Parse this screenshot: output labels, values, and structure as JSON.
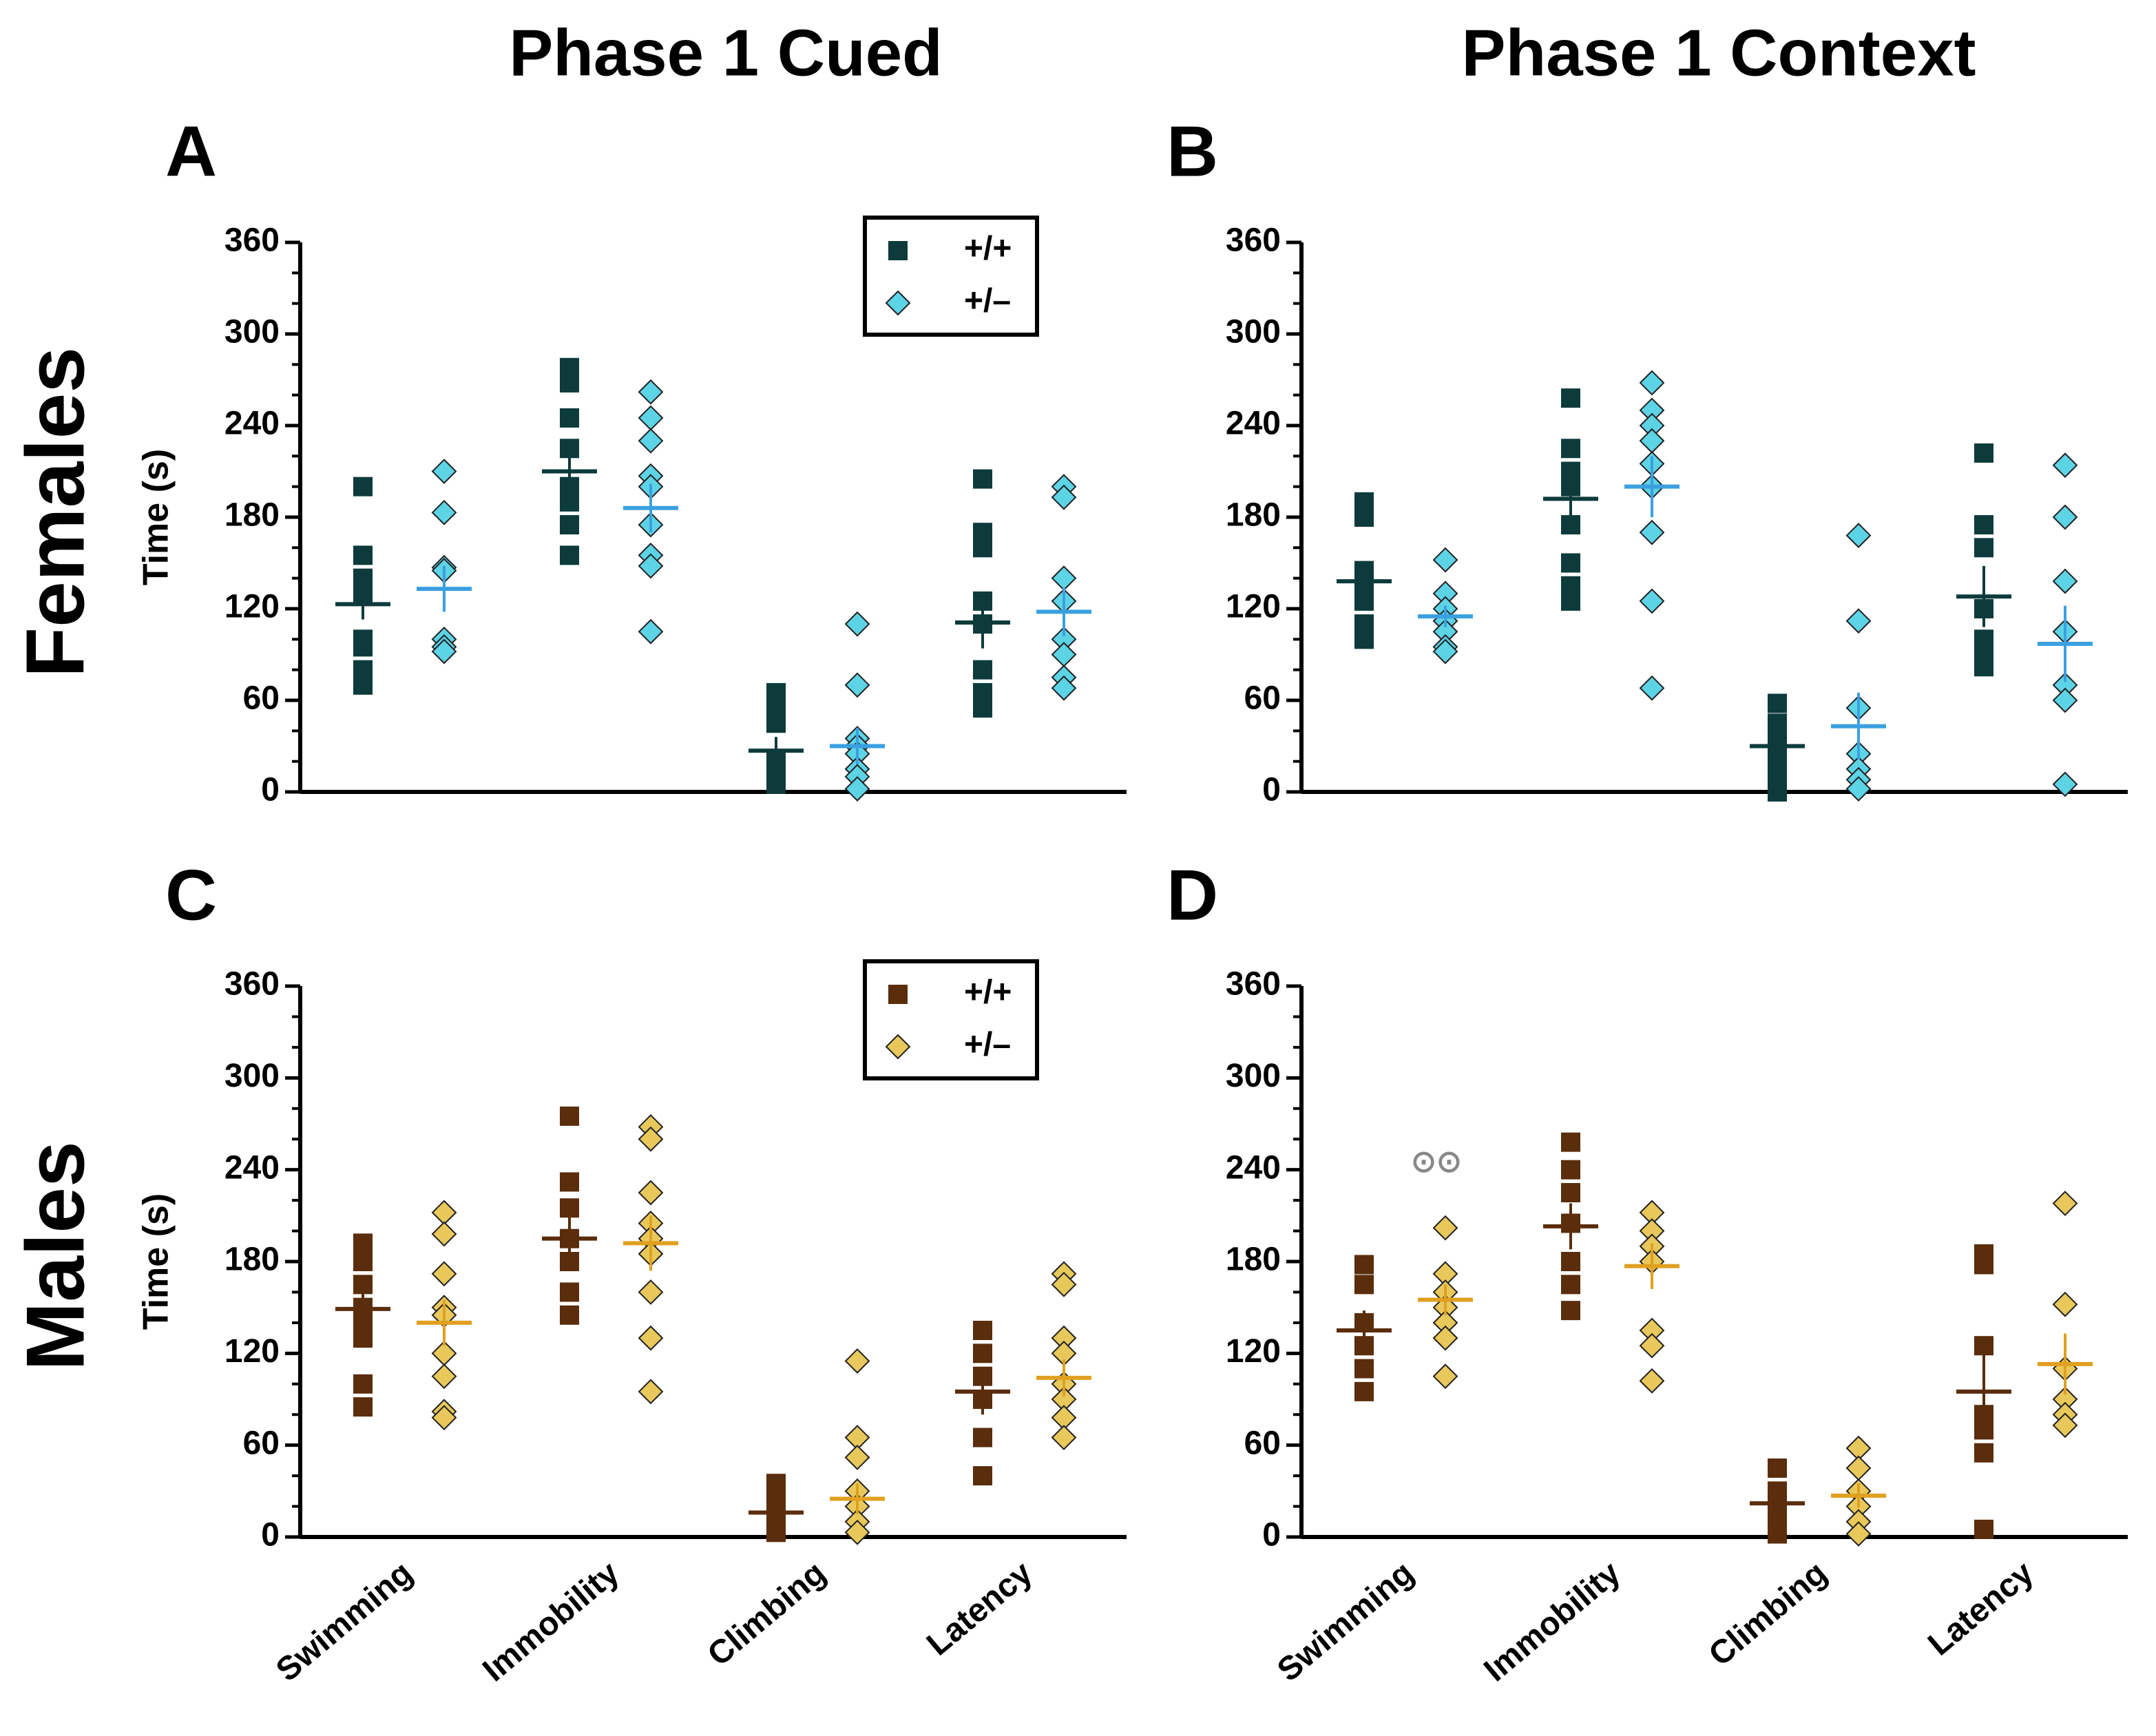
{
  "figure": {
    "columns": [
      "Phase 1 Cued",
      "Phase 1 Context"
    ],
    "rows": [
      "Females",
      "Males"
    ]
  },
  "chart_data": [
    {
      "type": "strip",
      "panel": "A",
      "ylabel": "Time (s)",
      "categories": [
        null,
        null,
        null,
        null
      ],
      "ylim": [
        0,
        360
      ],
      "yticks": [
        0,
        60,
        120,
        180,
        240,
        300,
        360
      ],
      "yminor_step": 20,
      "legend": "upper right",
      "series": [
        {
          "name": "+/+",
          "marker": "square",
          "color": "#0d3b3b",
          "mean_color": "#0d3b3b",
          "values": [
            [
              200,
              155,
              140,
              130,
              100,
              95,
              80,
              70
            ],
            [
              278,
              268,
              245,
              225,
              200,
              190,
              175,
              155
            ],
            [
              65,
              55,
              45,
              20,
              10,
              5
            ],
            [
              205,
              170,
              160,
              125,
              110,
              80,
              65,
              55
            ]
          ],
          "means": [
            123,
            210,
            27,
            111
          ],
          "errors": [
            10,
            13,
            9,
            17
          ]
        },
        {
          "name": "+/–",
          "marker": "diamond",
          "color": "#5dd3e6",
          "mean_color": "#3aa0e0",
          "values": [
            [
              210,
              183,
              147,
              145,
              100,
              95,
              92
            ],
            [
              262,
              245,
              230,
              207,
              200,
              175,
              155,
              148,
              105
            ],
            [
              110,
              70,
              35,
              30,
              25,
              15,
              10,
              2
            ],
            [
              200,
              193,
              140,
              125,
              100,
              90,
              75,
              68
            ]
          ],
          "means": [
            133,
            186,
            30,
            118
          ],
          "errors": [
            15,
            16,
            12,
            16
          ]
        }
      ]
    },
    {
      "type": "strip",
      "panel": "B",
      "categories": [
        null,
        null,
        null,
        null
      ],
      "ylim": [
        0,
        360
      ],
      "yticks": [
        0,
        60,
        120,
        180,
        240,
        300,
        360
      ],
      "yminor_step": 20,
      "series": [
        {
          "marker": "square",
          "color": "#0d3b3b",
          "mean_color": "#0d3b3b",
          "values": [
            [
              190,
              180,
              145,
              135,
              125,
              110,
              100
            ],
            [
              258,
              225,
              210,
              200,
              175,
              150,
              135,
              125
            ],
            [
              58,
              45,
              35,
              25,
              15,
              5,
              0
            ],
            [
              222,
              175,
              160,
              120,
              100,
              90,
              82
            ]
          ],
          "means": [
            138,
            192,
            30,
            128
          ],
          "errors": [
            12,
            16,
            8,
            20
          ]
        },
        {
          "marker": "diamond",
          "color": "#5dd3e6",
          "mean_color": "#3aa0e0",
          "values": [
            [
              152,
              130,
              120,
              112,
              105,
              95,
              92
            ],
            [
              268,
              250,
              240,
              230,
              215,
              200,
              170,
              125,
              68
            ],
            [
              168,
              112,
              55,
              25,
              15,
              8,
              2
            ],
            [
              214,
              180,
              138,
              105,
              70,
              60,
              5
            ]
          ],
          "means": [
            115,
            200,
            43,
            97
          ],
          "errors": [
            7,
            20,
            22,
            25
          ]
        }
      ]
    },
    {
      "type": "strip",
      "panel": "C",
      "ylabel": "Time (s)",
      "categories": [
        "Swimming",
        "Immobility",
        "Climbing",
        "Latency"
      ],
      "ylim": [
        0,
        360
      ],
      "yticks": [
        0,
        60,
        120,
        180,
        240,
        300,
        360
      ],
      "yminor_step": 20,
      "legend": "upper right",
      "series": [
        {
          "name": "+/+",
          "marker": "square",
          "color": "#5a2d0c",
          "mean_color": "#5a2d0c",
          "values": [
            [
              192,
              180,
              165,
              150,
              140,
              130,
              100,
              85
            ],
            [
              275,
              232,
              215,
              195,
              180,
              160,
              145
            ],
            [
              35,
              25,
              15,
              8,
              3
            ],
            [
              135,
              120,
              105,
              90,
              65,
              40
            ]
          ],
          "means": [
            149,
            195,
            16,
            95
          ],
          "errors": [
            13,
            16,
            6,
            15
          ]
        },
        {
          "name": "+/–",
          "marker": "diamond",
          "color": "#e8c85a",
          "mean_color": "#e0a020",
          "values": [
            [
              212,
              198,
              172,
              150,
              145,
              120,
              105,
              82,
              78
            ],
            [
              268,
              260,
              225,
              205,
              195,
              185,
              160,
              130,
              95
            ],
            [
              115,
              65,
              52,
              30,
              20,
              10,
              3
            ],
            [
              172,
              165,
              130,
              120,
              100,
              90,
              78,
              65
            ]
          ],
          "means": [
            140,
            192,
            25,
            104
          ],
          "errors": [
            15,
            18,
            10,
            12
          ]
        }
      ]
    },
    {
      "type": "strip",
      "panel": "D",
      "categories": [
        "Swimming",
        "Immobility",
        "Climbing",
        "Latency"
      ],
      "ylim": [
        0,
        360
      ],
      "yticks": [
        0,
        60,
        120,
        180,
        240,
        300,
        360
      ],
      "yminor_step": 20,
      "annotation": "⊙⊙",
      "series": [
        {
          "marker": "square",
          "color": "#5a2d0c",
          "mean_color": "#5a2d0c",
          "values": [
            [
              178,
              165,
              140,
              125,
              110,
              95
            ],
            [
              258,
              240,
              225,
              205,
              180,
              165,
              148
            ],
            [
              45,
              30,
              20,
              10,
              2
            ],
            [
              185,
              178,
              125,
              80,
              70,
              55,
              5
            ]
          ],
          "means": [
            135,
            203,
            22,
            95
          ],
          "errors": [
            13,
            15,
            8,
            25
          ]
        },
        {
          "marker": "diamond",
          "color": "#e8c85a",
          "mean_color": "#e0a020",
          "values": [
            [
              202,
              172,
              160,
              150,
              140,
              130,
              105
            ],
            [
              212,
              200,
              190,
              180,
              135,
              125,
              102
            ],
            [
              58,
              45,
              30,
              20,
              10,
              2
            ],
            [
              218,
              152,
              110,
              90,
              80,
              73
            ]
          ],
          "means": [
            155,
            177,
            27,
            113
          ],
          "errors": [
            10,
            15,
            8,
            20
          ]
        }
      ]
    }
  ]
}
